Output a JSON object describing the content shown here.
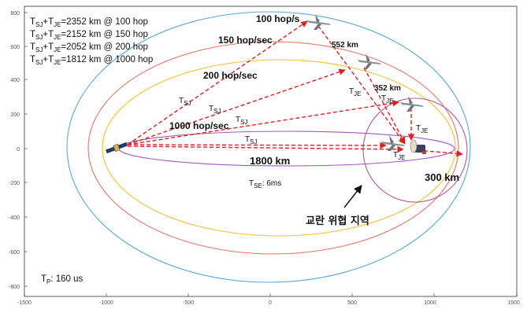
{
  "legend": [
    {
      "a": "T",
      "a_sub": "SJ",
      "b": "+T",
      "b_sub": "JE",
      "rest": "=2352 km @ 100 hop"
    },
    {
      "a": "T",
      "a_sub": "SJ",
      "b": "+T",
      "b_sub": "JE",
      "rest": "=2152 km @ 150 hop"
    },
    {
      "a": "T",
      "a_sub": "SJ",
      "b": "+T",
      "b_sub": "JE",
      "rest": "=2052 km @ 200 hop"
    },
    {
      "a": "T",
      "a_sub": "SJ",
      "b": "+T",
      "b_sub": "JE",
      "rest": "=1812 km @ 1000 hop"
    }
  ],
  "hop_labels": {
    "h100": "100 hop/s",
    "h150": "150 hop/sec",
    "h200": "200 hop/sec",
    "h1000": "1000 hop/sec"
  },
  "distance_labels": {
    "d552": "552 km",
    "d352": "352 km",
    "d1800": "1800 km",
    "d300": "300 km"
  },
  "path_labels": {
    "tsj": "T",
    "tsj_sub": "SJ",
    "tje": "T",
    "tje_sub": "JE",
    "tse_main": "T",
    "tse_sub": "SE",
    "tse_rest": ": 6ms",
    "tp_main": "T",
    "tp_sub": "P",
    "tp_rest": ": 160 us"
  },
  "zone_label": "교란 위협 지역",
  "axes": {
    "x_ticks": [
      "-1500",
      "-1000",
      "-500",
      "0",
      "500",
      "1000",
      "1500"
    ],
    "y_ticks": [
      "800",
      "600",
      "400",
      "200",
      "0",
      "-200",
      "-400",
      "-600",
      "-800"
    ]
  },
  "colors": {
    "ellipse_100": "#5aa9d6",
    "ellipse_150": "#e8746a",
    "ellipse_200": "#f2c232",
    "ellipse_1000": "#a05ab8",
    "zone_circle": "#b0579a",
    "arrow": "#e02020"
  },
  "icons": {
    "uav": "drone-icon",
    "satellite": "satellite-icon",
    "receiver": "receiver-icon"
  }
}
